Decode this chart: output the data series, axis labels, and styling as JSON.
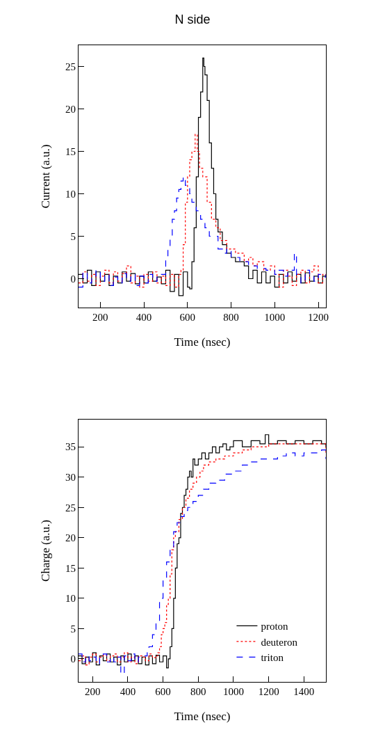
{
  "chart_data": [
    {
      "type": "step",
      "title": "N side",
      "xlabel": "Time (nsec)",
      "ylabel": "Current (a.u.)",
      "xlim": [
        100,
        1235
      ],
      "xticks": [
        200,
        400,
        600,
        800,
        1000,
        1200
      ],
      "ylim": [
        -3.4,
        27.5
      ],
      "yticks": [
        0,
        5,
        10,
        15,
        20,
        25
      ],
      "grid": false,
      "legend": false,
      "series": [
        {
          "color": "#000000",
          "line_style": "solid",
          "x": [
            100,
            120,
            140,
            160,
            180,
            200,
            220,
            240,
            260,
            280,
            300,
            320,
            340,
            360,
            380,
            400,
            420,
            440,
            460,
            480,
            500,
            520,
            540,
            560,
            580,
            600,
            610,
            620,
            630,
            640,
            650,
            660,
            670,
            675,
            680,
            690,
            700,
            710,
            720,
            730,
            740,
            760,
            780,
            800,
            820,
            840,
            860,
            880,
            900,
            920,
            940,
            960,
            980,
            1000,
            1020,
            1040,
            1060,
            1080,
            1100,
            1120,
            1140,
            1160,
            1180,
            1200,
            1220,
            1235
          ],
          "values": [
            0.5,
            -0.5,
            1,
            -0.8,
            0.8,
            -0.3,
            0.5,
            -0.8,
            0.3,
            -0.5,
            0.8,
            -0.3,
            0.6,
            -0.6,
            0.3,
            -0.5,
            0.8,
            -0.3,
            0.2,
            -0.6,
            1,
            -1.5,
            0.5,
            -2,
            0.8,
            -1,
            -1.2,
            2,
            6,
            12,
            19,
            22,
            26,
            25,
            24,
            21,
            16,
            13,
            10,
            7,
            5.5,
            4,
            3,
            2.5,
            2,
            2,
            1.5,
            0,
            1,
            -0.5,
            0.8,
            -0.5,
            0.3,
            -1,
            0.5,
            -0.5,
            0.8,
            -0.3,
            0.5,
            -0.5,
            0.7,
            -0.3,
            0.3,
            -0.5,
            0.3,
            0.5
          ]
        },
        {
          "color": "#ff0000",
          "line_style": "dotted",
          "x": [
            100,
            120,
            140,
            160,
            180,
            200,
            220,
            240,
            260,
            280,
            300,
            320,
            340,
            360,
            380,
            400,
            420,
            440,
            460,
            480,
            500,
            520,
            540,
            560,
            570,
            580,
            590,
            600,
            610,
            620,
            635,
            645,
            655,
            670,
            690,
            710,
            730,
            750,
            780,
            820,
            860,
            880,
            900,
            920,
            950,
            980,
            1000,
            1020,
            1040,
            1060,
            1080,
            1100,
            1120,
            1140,
            1160,
            1180,
            1200,
            1220,
            1235
          ],
          "values": [
            -0.5,
            0.8,
            -0.3,
            0.5,
            -0.8,
            0.3,
            1,
            -0.5,
            0.8,
            -0.3,
            0.6,
            1.5,
            -0.5,
            0.3,
            -1,
            0.5,
            -0.3,
            0.8,
            -0.5,
            0.3,
            -0.8,
            0.5,
            -1,
            0.5,
            1,
            4,
            9,
            12,
            14,
            15,
            17,
            15,
            13,
            12,
            9,
            7,
            6,
            4.5,
            3.5,
            3,
            2,
            2.5,
            1.5,
            2,
            1,
            1.5,
            0.5,
            -1,
            1,
            0.3,
            -0.8,
            0.5,
            1,
            -0.5,
            0.8,
            1.5,
            -0.5,
            0.5,
            0.3
          ]
        },
        {
          "color": "#0000ff",
          "line_style": "dashed",
          "x": [
            100,
            120,
            140,
            160,
            180,
            200,
            220,
            240,
            260,
            280,
            300,
            320,
            340,
            360,
            380,
            400,
            420,
            440,
            460,
            480,
            500,
            510,
            520,
            530,
            540,
            550,
            560,
            570,
            580,
            590,
            600,
            610,
            620,
            640,
            660,
            680,
            700,
            720,
            740,
            760,
            780,
            800,
            840,
            880,
            920,
            960,
            1000,
            1020,
            1040,
            1060,
            1090,
            1100,
            1120,
            1140,
            1160,
            1180,
            1200,
            1220,
            1235
          ],
          "values": [
            -1,
            0.8,
            -0.5,
            0.3,
            1,
            -0.3,
            0.5,
            -0.8,
            0.2,
            -0.5,
            0.6,
            -0.3,
            0.5,
            -0.8,
            0.3,
            -0.5,
            0.5,
            -0.3,
            0.3,
            0.5,
            2.5,
            3.5,
            5,
            7,
            8,
            9.5,
            10.5,
            11.5,
            12,
            11,
            11,
            10,
            9,
            8,
            7,
            6,
            5,
            5,
            3.5,
            3,
            3.5,
            2.5,
            2,
            1.5,
            1.2,
            1,
            0.5,
            1,
            0.3,
            1,
            3,
            0.5,
            -0.5,
            1,
            0.3,
            -0.3,
            0.5,
            0.2,
            0.5
          ]
        }
      ]
    },
    {
      "type": "step",
      "xlabel": "Time (nsec)",
      "ylabel": "Charge (a.u.)",
      "xlim": [
        120,
        1525
      ],
      "xticks": [
        200,
        400,
        600,
        800,
        1000,
        1200,
        1400
      ],
      "ylim": [
        -3.8,
        39.5
      ],
      "yticks": [
        0,
        5,
        10,
        15,
        20,
        25,
        30,
        35
      ],
      "grid": false,
      "legend": "bottom right",
      "series": [
        {
          "name": "proton",
          "color": "#000000",
          "line_style": "solid",
          "x": [
            120,
            140,
            160,
            180,
            200,
            220,
            240,
            260,
            280,
            300,
            320,
            340,
            360,
            380,
            400,
            420,
            440,
            460,
            480,
            500,
            520,
            540,
            560,
            580,
            600,
            620,
            630,
            640,
            650,
            660,
            670,
            680,
            690,
            700,
            710,
            720,
            730,
            740,
            750,
            760,
            770,
            780,
            800,
            820,
            840,
            860,
            880,
            900,
            920,
            940,
            960,
            980,
            1000,
            1050,
            1100,
            1150,
            1180,
            1200,
            1250,
            1300,
            1350,
            1400,
            1450,
            1500,
            1525
          ],
          "values": [
            0.5,
            -0.8,
            0.3,
            -0.5,
            1,
            -1,
            0.5,
            -0.3,
            0.8,
            -0.5,
            0.3,
            -1,
            0.5,
            -0.5,
            0.8,
            -0.3,
            0.5,
            -0.8,
            0.3,
            -1,
            0.5,
            -0.8,
            0.6,
            -0.5,
            0.5,
            -1.5,
            0,
            2,
            5,
            10,
            15,
            19,
            20,
            24,
            25,
            27,
            28,
            30,
            31,
            30,
            33,
            32,
            33,
            34,
            33,
            34,
            35,
            34,
            35,
            35.5,
            34.5,
            35,
            36,
            35,
            36,
            35.5,
            37,
            35.5,
            36,
            35.5,
            36,
            35.5,
            36,
            35.5,
            35
          ]
        },
        {
          "name": "deuteron",
          "color": "#ff0000",
          "line_style": "dotted",
          "x": [
            120,
            140,
            160,
            180,
            200,
            220,
            240,
            260,
            280,
            300,
            320,
            340,
            360,
            380,
            400,
            420,
            440,
            460,
            480,
            500,
            520,
            540,
            560,
            570,
            580,
            590,
            600,
            610,
            620,
            630,
            640,
            650,
            660,
            670,
            690,
            710,
            730,
            750,
            770,
            790,
            810,
            830,
            860,
            900,
            950,
            1000,
            1050,
            1100,
            1150,
            1200,
            1300,
            1400,
            1500,
            1525
          ],
          "values": [
            -0.3,
            0.5,
            -1,
            0.3,
            0.8,
            -0.5,
            0.3,
            0.6,
            -0.3,
            0.5,
            0.8,
            -0.5,
            0.3,
            1,
            -0.5,
            0.3,
            -0.8,
            0.5,
            0.3,
            -0.3,
            0.8,
            0.2,
            0.5,
            1,
            2,
            4,
            5,
            6,
            9,
            10,
            14,
            18,
            20,
            21,
            23,
            25,
            26.5,
            28,
            29,
            30,
            31,
            32,
            32.5,
            33,
            33.5,
            34,
            34.5,
            35,
            35,
            35.5,
            35.5,
            35.5,
            35.5,
            34
          ]
        },
        {
          "name": "triton",
          "color": "#0000ff",
          "line_style": "dashed",
          "x": [
            120,
            140,
            160,
            180,
            200,
            220,
            240,
            260,
            280,
            300,
            320,
            340,
            360,
            380,
            400,
            420,
            440,
            460,
            480,
            500,
            510,
            520,
            540,
            560,
            580,
            600,
            620,
            640,
            660,
            680,
            700,
            720,
            740,
            770,
            800,
            830,
            860,
            900,
            950,
            1000,
            1050,
            1100,
            1150,
            1200,
            1250,
            1300,
            1350,
            1400,
            1450,
            1500,
            1525
          ],
          "values": [
            0.8,
            -0.5,
            0.5,
            -0.3,
            0.3,
            -0.8,
            0.5,
            0.8,
            -0.5,
            0.3,
            -0.5,
            0.3,
            -2.5,
            0.5,
            -0.3,
            0.8,
            -0.5,
            0.3,
            0.5,
            0.5,
            1.5,
            2,
            4,
            6,
            10,
            13,
            16,
            18,
            21,
            22.5,
            23.5,
            24.5,
            25,
            26,
            27,
            28,
            29,
            29.5,
            30.5,
            31,
            32,
            32.5,
            33,
            33,
            33.5,
            34,
            33.5,
            34,
            34,
            34.5,
            33
          ]
        }
      ]
    }
  ]
}
